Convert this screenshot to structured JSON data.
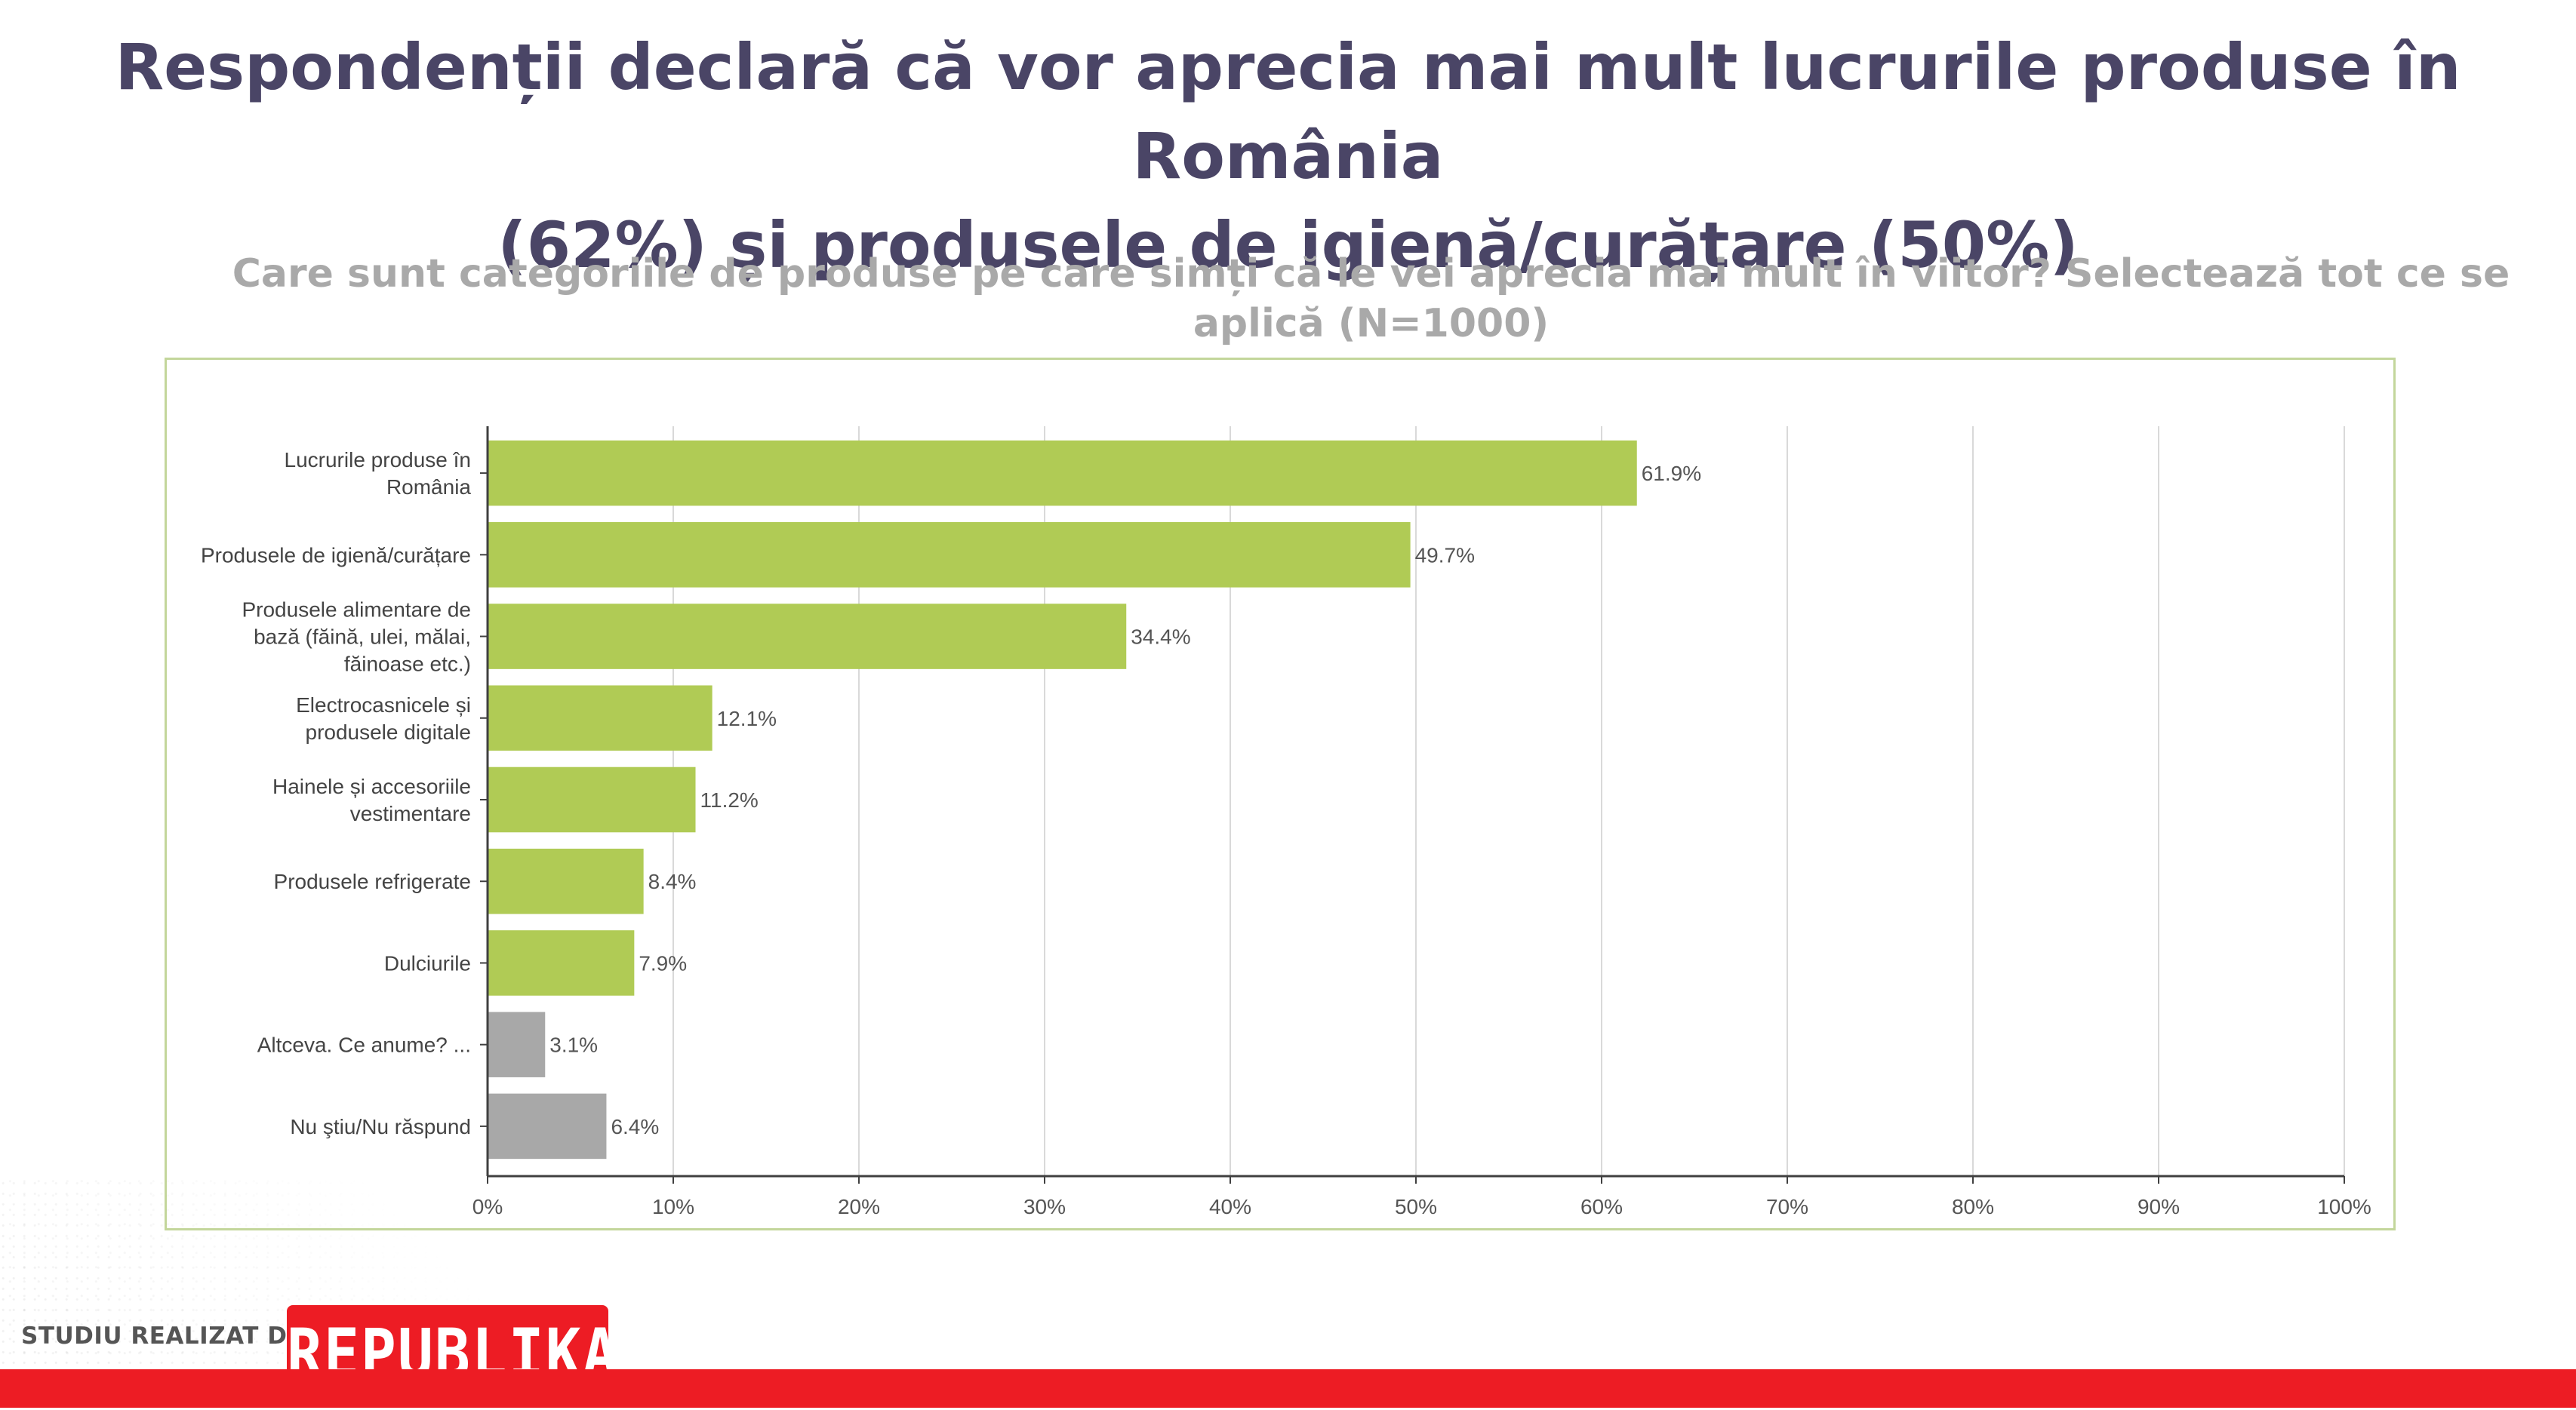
{
  "title": {
    "line1": "Respondenții declară că vor aprecia mai mult lucrurile produse în România",
    "line2": "(62%) și produsele de igienă/curățare (50%)"
  },
  "subtitle": "Care sunt categoriile de produse pe care simți că le vei aprecia mai mult în viitor? Selectează tot ce se aplică (N=1000)",
  "chart_data": {
    "type": "bar",
    "orientation": "horizontal",
    "categories": [
      [
        "Lucrurile produse în",
        "România"
      ],
      [
        "Produsele de igienă/curățare"
      ],
      [
        "Produsele alimentare de",
        "bază (făină, ulei, mălai,",
        "făinoase etc.)"
      ],
      [
        "Electrocasnicele și",
        "produsele digitale"
      ],
      [
        "Hainele și accesoriile",
        "vestimentare"
      ],
      [
        "Produsele refrigerate"
      ],
      [
        "Dulciurile"
      ],
      [
        "Altceva. Ce anume? ..."
      ],
      [
        "Nu ştiu/Nu răspund"
      ]
    ],
    "values": [
      61.9,
      49.7,
      34.4,
      12.1,
      11.2,
      8.4,
      7.9,
      3.1,
      6.4
    ],
    "value_labels": [
      "61.9%",
      "49.7%",
      "34.4%",
      "12.1%",
      "11.2%",
      "8.4%",
      "7.9%",
      "3.1%",
      "6.4%"
    ],
    "bar_colors": [
      "#b0cb55",
      "#b0cb55",
      "#b0cb55",
      "#b0cb55",
      "#b0cb55",
      "#b0cb55",
      "#b0cb55",
      "#a8a8a8",
      "#a8a8a8"
    ],
    "xlim": [
      0,
      100
    ],
    "x_ticks": [
      0,
      10,
      20,
      30,
      40,
      50,
      60,
      70,
      80,
      90,
      100
    ],
    "x_tick_labels": [
      "0%",
      "10%",
      "20%",
      "30%",
      "40%",
      "50%",
      "60%",
      "70%",
      "80%",
      "90%",
      "100%"
    ],
    "grid": true,
    "legend": "none"
  },
  "footer": {
    "credit_label": "STUDIU REALIZAT DE",
    "logo_text": "REPUBLIKA"
  },
  "colors": {
    "title": "#4a4566",
    "subtitle": "#a9a9a9",
    "accent_red": "#ed1c24",
    "bar_green": "#b0cb55",
    "bar_gray": "#a8a8a8",
    "frame": "#c3d69b"
  }
}
